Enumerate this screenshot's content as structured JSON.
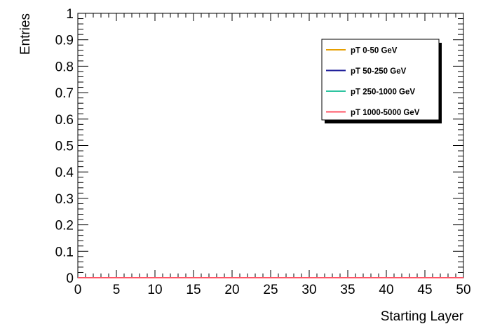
{
  "chart_data": {
    "type": "line",
    "title": "",
    "xlabel": "Starting Layer",
    "ylabel": "Entries",
    "xlim": [
      0,
      50
    ],
    "ylim": [
      0,
      1
    ],
    "xticks": [
      "0",
      "5",
      "10",
      "15",
      "20",
      "25",
      "30",
      "35",
      "40",
      "45",
      "50"
    ],
    "yticks": [
      "0",
      "0.1",
      "0.2",
      "0.3",
      "0.4",
      "0.5",
      "0.6",
      "0.7",
      "0.8",
      "0.9",
      "1"
    ],
    "grid": false,
    "legend_position": "top-right",
    "x": [
      0,
      50
    ],
    "series": [
      {
        "name": "pT 0-50 GeV",
        "color": "#e69f00",
        "values": [
          0,
          0
        ]
      },
      {
        "name": "pT 50-250 GeV",
        "color": "#1f1f9a",
        "values": [
          0,
          0
        ]
      },
      {
        "name": "pT 250-1000 GeV",
        "color": "#2ec4a0",
        "values": [
          0,
          0
        ]
      },
      {
        "name": "pT 1000-5000 GeV",
        "color": "#ff5566",
        "values": [
          0,
          0
        ]
      }
    ]
  }
}
